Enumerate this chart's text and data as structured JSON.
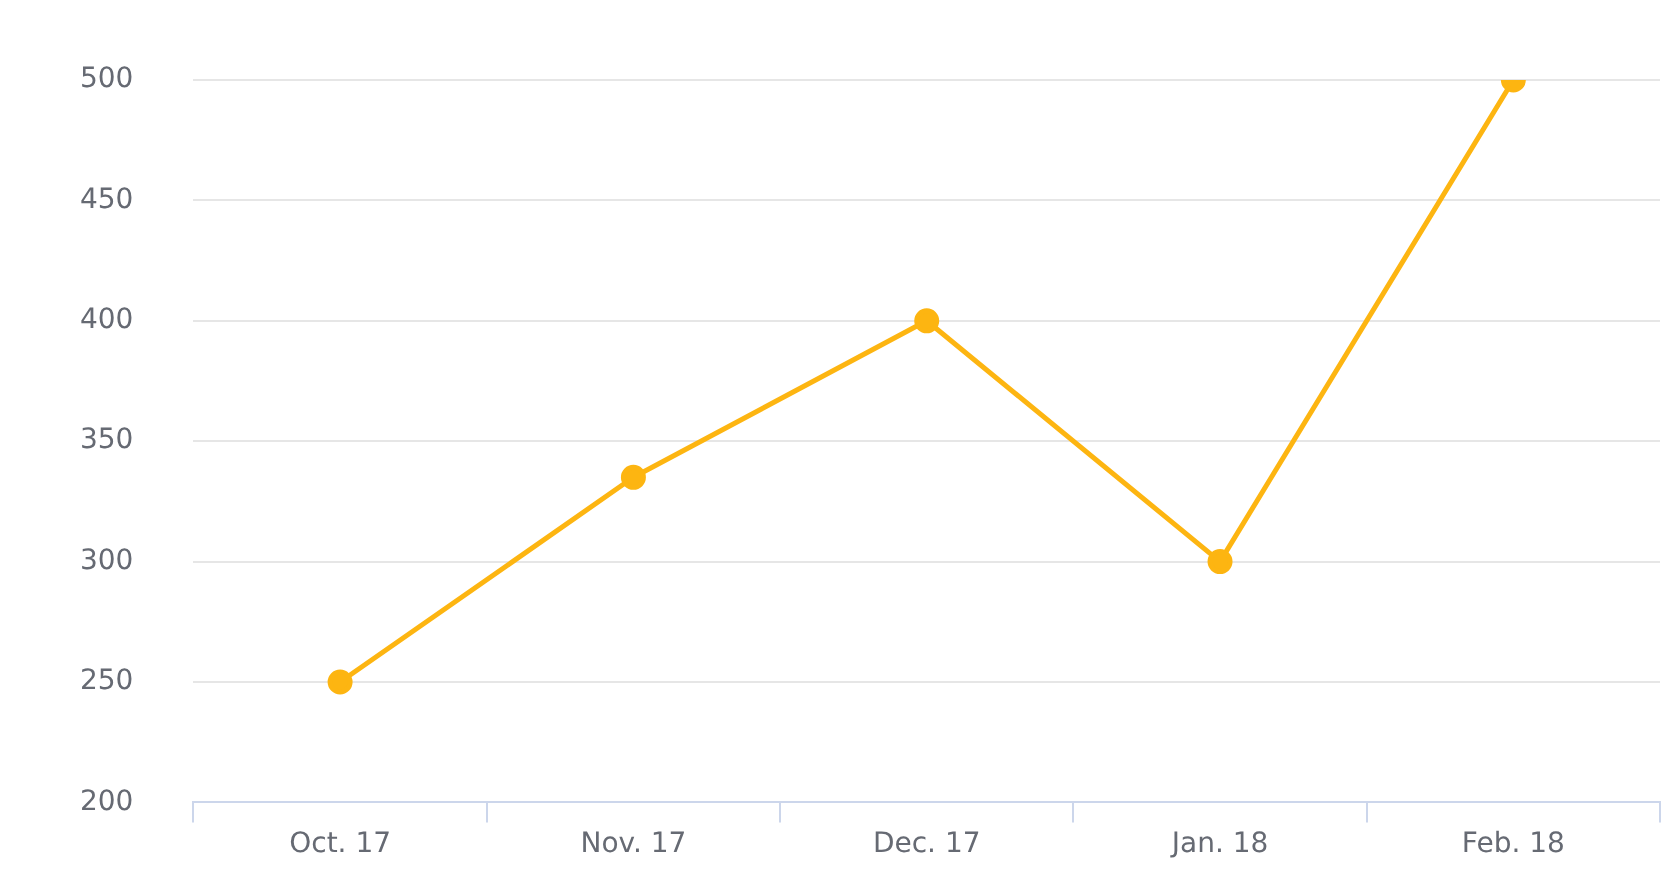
{
  "chart_data": {
    "type": "line",
    "categories": [
      "Oct. 17",
      "Nov. 17",
      "Dec. 17",
      "Jan. 18",
      "Feb. 18"
    ],
    "series": [
      {
        "color": "#fdb511",
        "values": [
          250,
          335,
          400,
          300,
          500
        ]
      }
    ],
    "ylim": [
      200,
      500
    ],
    "yticks": [
      200,
      250,
      300,
      350,
      400,
      450,
      500
    ],
    "grid": "y",
    "marker": "circle",
    "line_style": "solid",
    "legend": false
  }
}
